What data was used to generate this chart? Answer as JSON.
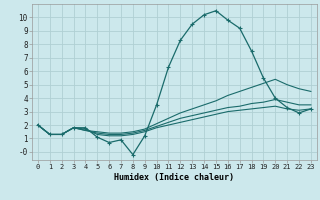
{
  "xlabel": "Humidex (Indice chaleur)",
  "background_color": "#cce8ec",
  "grid_color": "#b0d0d4",
  "line_color": "#1a6b6b",
  "x_values": [
    0,
    1,
    2,
    3,
    4,
    5,
    6,
    7,
    8,
    9,
    10,
    11,
    12,
    13,
    14,
    15,
    16,
    17,
    18,
    19,
    20,
    21,
    22,
    23
  ],
  "line1": [
    2.0,
    1.3,
    1.3,
    1.8,
    1.8,
    1.1,
    0.7,
    0.9,
    -0.2,
    1.2,
    3.5,
    6.3,
    8.3,
    9.5,
    10.2,
    10.5,
    9.8,
    9.2,
    7.5,
    5.5,
    4.0,
    3.3,
    2.9,
    3.2
  ],
  "line2": [
    2.0,
    1.3,
    1.3,
    1.8,
    1.7,
    1.3,
    1.2,
    1.2,
    1.3,
    1.5,
    1.8,
    2.0,
    2.2,
    2.4,
    2.6,
    2.8,
    3.0,
    3.1,
    3.2,
    3.3,
    3.4,
    3.2,
    3.1,
    3.2
  ],
  "line3": [
    2.0,
    1.3,
    1.3,
    1.8,
    1.6,
    1.4,
    1.3,
    1.3,
    1.4,
    1.6,
    1.9,
    2.2,
    2.5,
    2.7,
    2.9,
    3.1,
    3.3,
    3.4,
    3.6,
    3.7,
    3.9,
    3.7,
    3.5,
    3.5
  ],
  "line4": [
    2.0,
    1.3,
    1.3,
    1.8,
    1.6,
    1.5,
    1.4,
    1.4,
    1.5,
    1.7,
    2.1,
    2.5,
    2.9,
    3.2,
    3.5,
    3.8,
    4.2,
    4.5,
    4.8,
    5.1,
    5.4,
    5.0,
    4.7,
    4.5
  ],
  "ylim": [
    -0.6,
    11.0
  ],
  "xlim": [
    -0.5,
    23.5
  ],
  "yticks": [
    0,
    1,
    2,
    3,
    4,
    5,
    6,
    7,
    8,
    9,
    10
  ],
  "xticks": [
    0,
    1,
    2,
    3,
    4,
    5,
    6,
    7,
    8,
    9,
    10,
    11,
    12,
    13,
    14,
    15,
    16,
    17,
    18,
    19,
    20,
    21,
    22,
    23
  ]
}
